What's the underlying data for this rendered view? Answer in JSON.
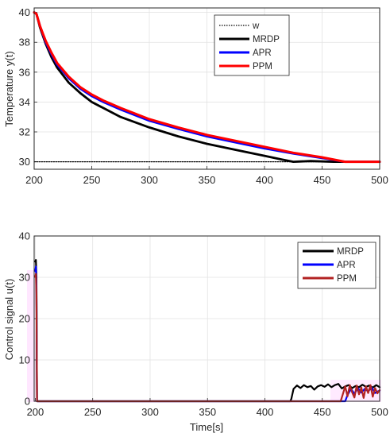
{
  "chart_data": [
    {
      "type": "line",
      "xlabel": "",
      "ylabel": "Temperature y(t)",
      "xlim": [
        200,
        500
      ],
      "ylim": [
        29.5,
        40.3
      ],
      "xticks": [
        200,
        250,
        300,
        350,
        400,
        450,
        500
      ],
      "yticks": [
        30,
        32,
        34,
        36,
        38,
        40
      ],
      "grid": true,
      "legend_position": "top-right",
      "series": [
        {
          "name": "w",
          "color": "#000000",
          "style": "dotted",
          "x": [
            200,
            500
          ],
          "y": [
            30,
            30
          ]
        },
        {
          "name": "MRDP",
          "color": "#000000",
          "style": "solid",
          "x": [
            200,
            202,
            205,
            210,
            215,
            220,
            230,
            240,
            250,
            260,
            275,
            300,
            325,
            350,
            375,
            400,
            415,
            425,
            440,
            460,
            480,
            500
          ],
          "y": [
            40,
            39.9,
            39.0,
            37.9,
            37.0,
            36.3,
            35.3,
            34.6,
            34.0,
            33.6,
            33.0,
            32.3,
            31.7,
            31.2,
            30.8,
            30.4,
            30.15,
            30.0,
            30.05,
            30.0,
            30.0,
            30.0
          ]
        },
        {
          "name": "APR",
          "color": "#0000ff",
          "style": "solid",
          "x": [
            200,
            202,
            205,
            210,
            215,
            220,
            230,
            240,
            250,
            260,
            275,
            300,
            325,
            350,
            375,
            400,
            425,
            450,
            470,
            480,
            500
          ],
          "y": [
            40,
            39.9,
            39.1,
            38.0,
            37.2,
            36.5,
            35.6,
            34.9,
            34.4,
            34.0,
            33.5,
            32.75,
            32.2,
            31.7,
            31.3,
            30.9,
            30.55,
            30.25,
            30.0,
            30.0,
            30.0
          ]
        },
        {
          "name": "PPM",
          "color": "#ff0000",
          "style": "solid",
          "x": [
            200,
            202,
            205,
            210,
            215,
            220,
            230,
            240,
            250,
            260,
            275,
            300,
            325,
            350,
            375,
            400,
            425,
            450,
            470,
            480,
            500
          ],
          "y": [
            40,
            39.9,
            39.1,
            38.1,
            37.3,
            36.6,
            35.7,
            35.0,
            34.5,
            34.1,
            33.6,
            32.85,
            32.3,
            31.8,
            31.4,
            31.0,
            30.6,
            30.3,
            30.0,
            30.0,
            30.0
          ]
        }
      ]
    },
    {
      "type": "line",
      "xlabel": "Time[s]",
      "ylabel": "Control signal u(t)",
      "xlim": [
        199,
        500
      ],
      "ylim": [
        0,
        40
      ],
      "xticks": [
        200,
        250,
        300,
        350,
        400,
        450,
        500
      ],
      "yticks": [
        0,
        10,
        20,
        30,
        40
      ],
      "grid": true,
      "legend_position": "top-right",
      "series": [
        {
          "name": "MRDP",
          "color": "#000000",
          "style": "solid",
          "x": [
            200,
            200.5,
            201,
            201.5,
            422,
            423,
            425,
            428,
            431,
            434,
            437,
            440,
            443,
            446,
            449,
            452,
            455,
            458,
            461,
            464,
            467,
            470,
            473,
            476,
            479,
            482,
            485,
            488,
            491,
            494,
            497,
            500
          ],
          "y": [
            33.8,
            34.2,
            30,
            0,
            0,
            0.5,
            3.0,
            3.8,
            3.2,
            3.9,
            3.4,
            3.7,
            2.8,
            3.6,
            3.9,
            3.5,
            4.1,
            3.4,
            3.9,
            4.2,
            3.1,
            3.6,
            3.9,
            3.2,
            3.7,
            3.4,
            4.0,
            3.5,
            3.8,
            3.3,
            3.9,
            3.4
          ]
        },
        {
          "name": "APR",
          "color": "#0000ff",
          "style": "solid",
          "x": [
            200,
            200.5,
            201,
            201.5,
            470,
            472,
            475,
            478,
            481,
            484,
            487,
            490,
            493,
            496,
            500
          ],
          "y": [
            31.5,
            32.6,
            28,
            0,
            0,
            1.5,
            3.0,
            1.8,
            3.2,
            2.1,
            3.0,
            2.4,
            3.3,
            2.0,
            2.6
          ]
        },
        {
          "name": "PPM",
          "color": "#b22222",
          "style": "solid",
          "x": [
            200,
            200.5,
            201,
            201.5,
            466,
            468,
            470,
            472,
            474,
            476,
            478,
            480,
            482,
            484,
            486,
            488,
            490,
            492,
            494,
            496,
            498,
            500
          ],
          "y": [
            30.2,
            30.8,
            26,
            0,
            0,
            1.8,
            3.6,
            1.2,
            3.9,
            2.2,
            0.9,
            3.8,
            1.7,
            3.3,
            0.8,
            3.6,
            2.0,
            3.9,
            1.1,
            3.2,
            1.9,
            2.7
          ]
        }
      ]
    }
  ]
}
